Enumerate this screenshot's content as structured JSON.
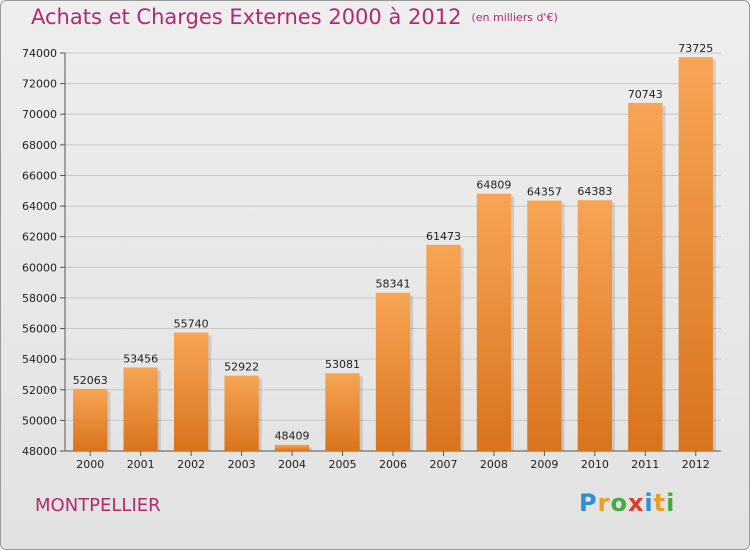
{
  "chart_title": {
    "main": "Achats et Charges Externes 2000 à 2012",
    "unit": "(en milliers d'€)"
  },
  "location": "MONTPELLIER",
  "logo": {
    "text": "Proxiti",
    "letters": [
      {
        "char": "P",
        "color": "#2e8fd4"
      },
      {
        "char": "r",
        "color": "#e8a020"
      },
      {
        "char": "o",
        "color": "#44aa44"
      },
      {
        "char": "x",
        "color": "#e23a2a"
      },
      {
        "char": "i",
        "color": "#2e8fd4"
      },
      {
        "char": "t",
        "color": "#e8a020"
      },
      {
        "char": "i",
        "color": "#44aa44"
      }
    ]
  },
  "colors": {
    "title": "#b22a6e",
    "bar_top": "#f7a555",
    "bar_bottom": "#d9731d"
  },
  "chart_data": {
    "type": "bar",
    "title": "Achats et Charges Externes 2000 à 2012",
    "subtitle": "(en milliers d'€)",
    "categories": [
      "2000",
      "2001",
      "2002",
      "2003",
      "2004",
      "2005",
      "2006",
      "2007",
      "2008",
      "2009",
      "2010",
      "2011",
      "2012"
    ],
    "values": [
      52063,
      53456,
      55740,
      52922,
      48409,
      53081,
      58341,
      61473,
      64809,
      64357,
      64383,
      70743,
      73725
    ],
    "ylim": [
      48000,
      74000
    ],
    "yticks": [
      "48000",
      "50000",
      "52000",
      "54000",
      "56000",
      "58000",
      "60000",
      "62000",
      "64000",
      "66000",
      "68000",
      "70000",
      "72000",
      "74000"
    ],
    "grid": true,
    "xlabel": "",
    "ylabel": ""
  }
}
